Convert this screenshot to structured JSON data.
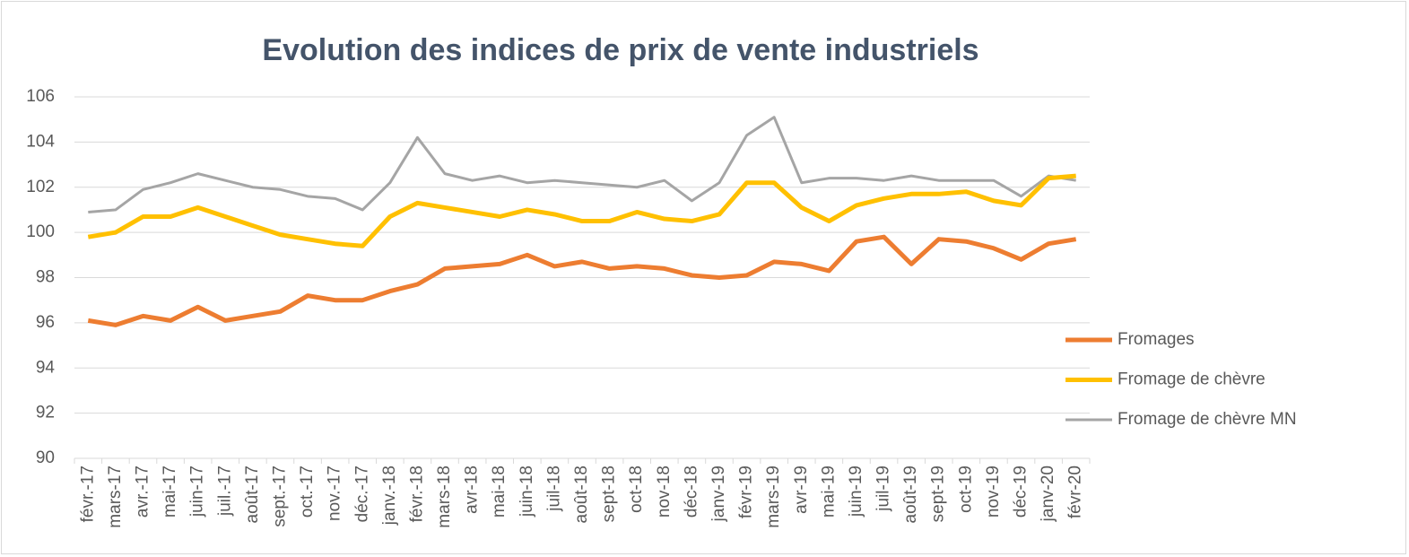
{
  "chart_data": {
    "type": "line",
    "title": "Evolution des indices de prix de vente industriels",
    "categories": [
      "févr.-17",
      "mars-17",
      "avr.-17",
      "mai-17",
      "juin-17",
      "juil.-17",
      "août-17",
      "sept.-17",
      "oct.-17",
      "nov.-17",
      "déc.-17",
      "janv.-18",
      "févr.-18",
      "mars-18",
      "avr-18",
      "mai-18",
      "juin-18",
      "juil-18",
      "août-18",
      "sept-18",
      "oct-18",
      "nov-18",
      "déc-18",
      "janv-19",
      "févr-19",
      "mars-19",
      "avr-19",
      "mai-19",
      "juin-19",
      "juil-19",
      "août-19",
      "sept-19",
      "oct-19",
      "nov-19",
      "déc-19",
      "janv-20",
      "févr-20"
    ],
    "series": [
      {
        "name": "Fromages",
        "color": "#ed7d31",
        "values": [
          96.1,
          95.9,
          96.3,
          96.1,
          96.7,
          96.1,
          96.3,
          96.5,
          97.2,
          97.0,
          97.0,
          97.4,
          97.7,
          98.4,
          98.5,
          98.6,
          99.0,
          98.5,
          98.7,
          98.4,
          98.5,
          98.4,
          98.1,
          98.0,
          98.1,
          98.7,
          98.6,
          98.3,
          99.6,
          99.8,
          98.6,
          99.7,
          99.6,
          99.3,
          98.8,
          99.5,
          99.7
        ]
      },
      {
        "name": "Fromage de chèvre",
        "color": "#ffc000",
        "values": [
          99.8,
          100.0,
          100.7,
          100.7,
          101.1,
          100.7,
          100.3,
          99.9,
          99.7,
          99.5,
          99.4,
          100.7,
          101.3,
          101.1,
          100.9,
          100.7,
          101.0,
          100.8,
          100.5,
          100.5,
          100.9,
          100.6,
          100.5,
          100.8,
          102.2,
          102.2,
          101.1,
          100.5,
          101.2,
          101.5,
          101.7,
          101.7,
          101.8,
          101.4,
          101.2,
          102.4,
          102.5
        ]
      },
      {
        "name": "Fromage de chèvre MN",
        "color": "#a5a5a5",
        "values": [
          100.9,
          101.0,
          101.9,
          102.2,
          102.6,
          102.3,
          102.0,
          101.9,
          101.6,
          101.5,
          101.0,
          102.2,
          104.2,
          102.6,
          102.3,
          102.5,
          102.2,
          102.3,
          102.2,
          102.1,
          102.0,
          102.3,
          101.4,
          102.2,
          104.3,
          105.1,
          102.2,
          102.4,
          102.4,
          102.3,
          102.5,
          102.3,
          102.3,
          102.3,
          101.6,
          102.5,
          102.3
        ]
      }
    ],
    "ylim": [
      90,
      106
    ],
    "yticks": [
      90,
      92,
      94,
      96,
      98,
      100,
      102,
      104,
      106
    ],
    "grid": true,
    "legend": "right"
  }
}
